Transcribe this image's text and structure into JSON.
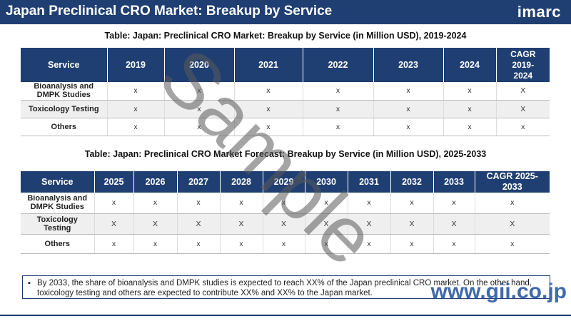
{
  "header": {
    "title": "Japan Preclinical CRO Market: Breakup by Service",
    "logo_text": "imarc"
  },
  "table1": {
    "title": "Table: Japan: Preclinical CRO Market: Breakup by Service (in Million USD), 2019-2024",
    "headers": [
      "Service",
      "2019",
      "2020",
      "2021",
      "2022",
      "2023",
      "2024",
      "CAGR 2019-2024"
    ],
    "rows": [
      [
        "Bioanalysis and DMPK Studies",
        "x",
        "x",
        "x",
        "x",
        "x",
        "x",
        "X"
      ],
      [
        "Toxicology Testing",
        "x",
        "x",
        "x",
        "x",
        "x",
        "x",
        "X"
      ],
      [
        "Others",
        "x",
        "x",
        "x",
        "x",
        "x",
        "x",
        "x"
      ]
    ]
  },
  "table2": {
    "title": "Table: Japan: Preclinical CRO Market Forecast: Breakup by Service (in Million USD), 2025-2033",
    "headers": [
      "Service",
      "2025",
      "2026",
      "2027",
      "2028",
      "2029",
      "2030",
      "2031",
      "2032",
      "2033",
      "CAGR 2025-2033"
    ],
    "rows": [
      [
        "Bioanalysis and DMPK Studies",
        "x",
        "x",
        "x",
        "x",
        "x",
        "x",
        "x",
        "x",
        "x",
        "x"
      ],
      [
        "Toxicology Testing",
        "X",
        "X",
        "X",
        "X",
        "X",
        "X",
        "X",
        "X",
        "X",
        "X"
      ],
      [
        "Others",
        "x",
        "x",
        "x",
        "x",
        "x",
        "x",
        "x",
        "x",
        "x",
        "x"
      ]
    ]
  },
  "note": {
    "bullet": "▪",
    "text": "By 2033, the share of bioanalysis and DMPK studies is expected to reach XX% of the Japan preclinical CRO market. On the other hand, toxicology testing and others are expected to contribute XX% and XX% to the Japan market."
  },
  "watermark": {
    "text": "Sample",
    "site": "www.gii.co.jp"
  },
  "colors": {
    "brand": "#1f3f73",
    "stripe": "#efefef"
  }
}
